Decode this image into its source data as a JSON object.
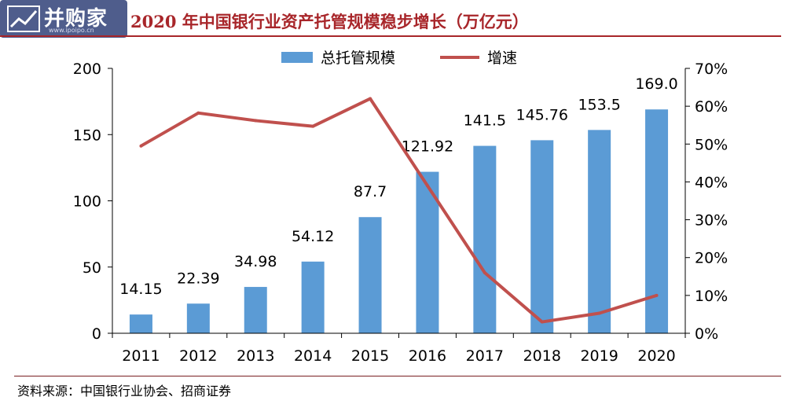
{
  "header": {
    "logo_text": "并购家",
    "logo_url_text": "www.ipoipo.cn",
    "title": "2020 年中国银行业资产托管规模稳步增长（万亿元）"
  },
  "chart_data": {
    "type": "bar+line",
    "title": "2020 年中国银行业资产托管规模稳步增长（万亿元）",
    "categories": [
      "2011",
      "2012",
      "2013",
      "2014",
      "2015",
      "2016",
      "2017",
      "2018",
      "2019",
      "2020"
    ],
    "series": [
      {
        "name": "总托管规模",
        "type": "bar",
        "axis": "left",
        "color": "#5b9bd5",
        "values": [
          14.15,
          22.39,
          34.98,
          54.12,
          87.7,
          121.92,
          141.5,
          145.76,
          153.5,
          169.0
        ],
        "labels": [
          "14.15",
          "22.39",
          "34.98",
          "54.12",
          "87.7",
          "121.92",
          "141.5",
          "145.76",
          "153.5",
          "169.0"
        ]
      },
      {
        "name": "增速",
        "type": "line",
        "axis": "right",
        "color": "#c0504d",
        "values": [
          0.495,
          0.582,
          0.562,
          0.547,
          0.62,
          0.39,
          0.16,
          0.03,
          0.053,
          0.1
        ]
      }
    ],
    "y_left": {
      "min": 0,
      "max": 200,
      "ticks": [
        "0",
        "50",
        "100",
        "150",
        "200"
      ]
    },
    "y_right": {
      "min": 0,
      "max": 0.7,
      "ticks": [
        "0%",
        "10%",
        "20%",
        "30%",
        "40%",
        "50%",
        "60%",
        "70%"
      ]
    },
    "legend": "top-center",
    "grid": false
  },
  "footer": {
    "source": "资料来源：中国银行业协会、招商证券"
  }
}
